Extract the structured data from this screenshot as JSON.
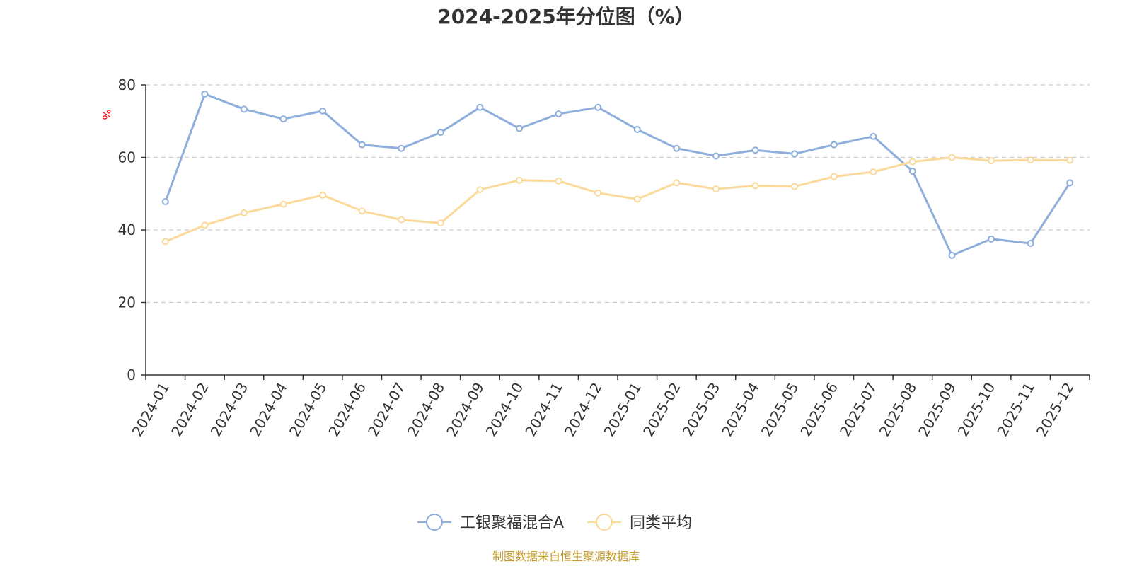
{
  "chart_data": {
    "type": "line",
    "title": "2024-2025年分位图（%）",
    "ylabel": "%",
    "xlabel": "",
    "ylim": [
      0,
      80
    ],
    "yticks": [
      0,
      20,
      40,
      60,
      80
    ],
    "grid": true,
    "legend_position": "bottom",
    "categories": [
      "2024-01",
      "2024-02",
      "2024-03",
      "2024-04",
      "2024-05",
      "2024-06",
      "2024-07",
      "2024-08",
      "2024-09",
      "2024-10",
      "2024-11",
      "2024-12",
      "2025-01",
      "2025-02",
      "2025-03",
      "2025-04",
      "2025-05",
      "2025-06",
      "2025-07",
      "2025-08",
      "2025-09",
      "2025-10",
      "2025-11",
      "2025-12"
    ],
    "series": [
      {
        "name": "工银聚福混合A",
        "color": "#8eaedb",
        "values": [
          47.8,
          77.5,
          73.3,
          70.6,
          72.8,
          63.5,
          62.5,
          66.9,
          73.8,
          68.0,
          72.0,
          73.8,
          67.7,
          62.5,
          60.4,
          62.0,
          61.0,
          63.5,
          65.8,
          56.2,
          33.0,
          37.5,
          36.3,
          53.0
        ]
      },
      {
        "name": "同类平均",
        "color": "#fbd99a",
        "values": [
          36.8,
          41.3,
          44.7,
          47.1,
          49.6,
          45.2,
          42.8,
          41.9,
          51.1,
          53.7,
          53.5,
          50.2,
          48.5,
          53.0,
          51.3,
          52.2,
          52.0,
          54.7,
          56.0,
          58.8,
          60.0,
          59.1,
          59.3,
          59.2
        ]
      }
    ],
    "source_note": "制图数据来自恒生聚源数据库",
    "unit_color": "#ff0000",
    "source_color": "#c49a2c"
  }
}
